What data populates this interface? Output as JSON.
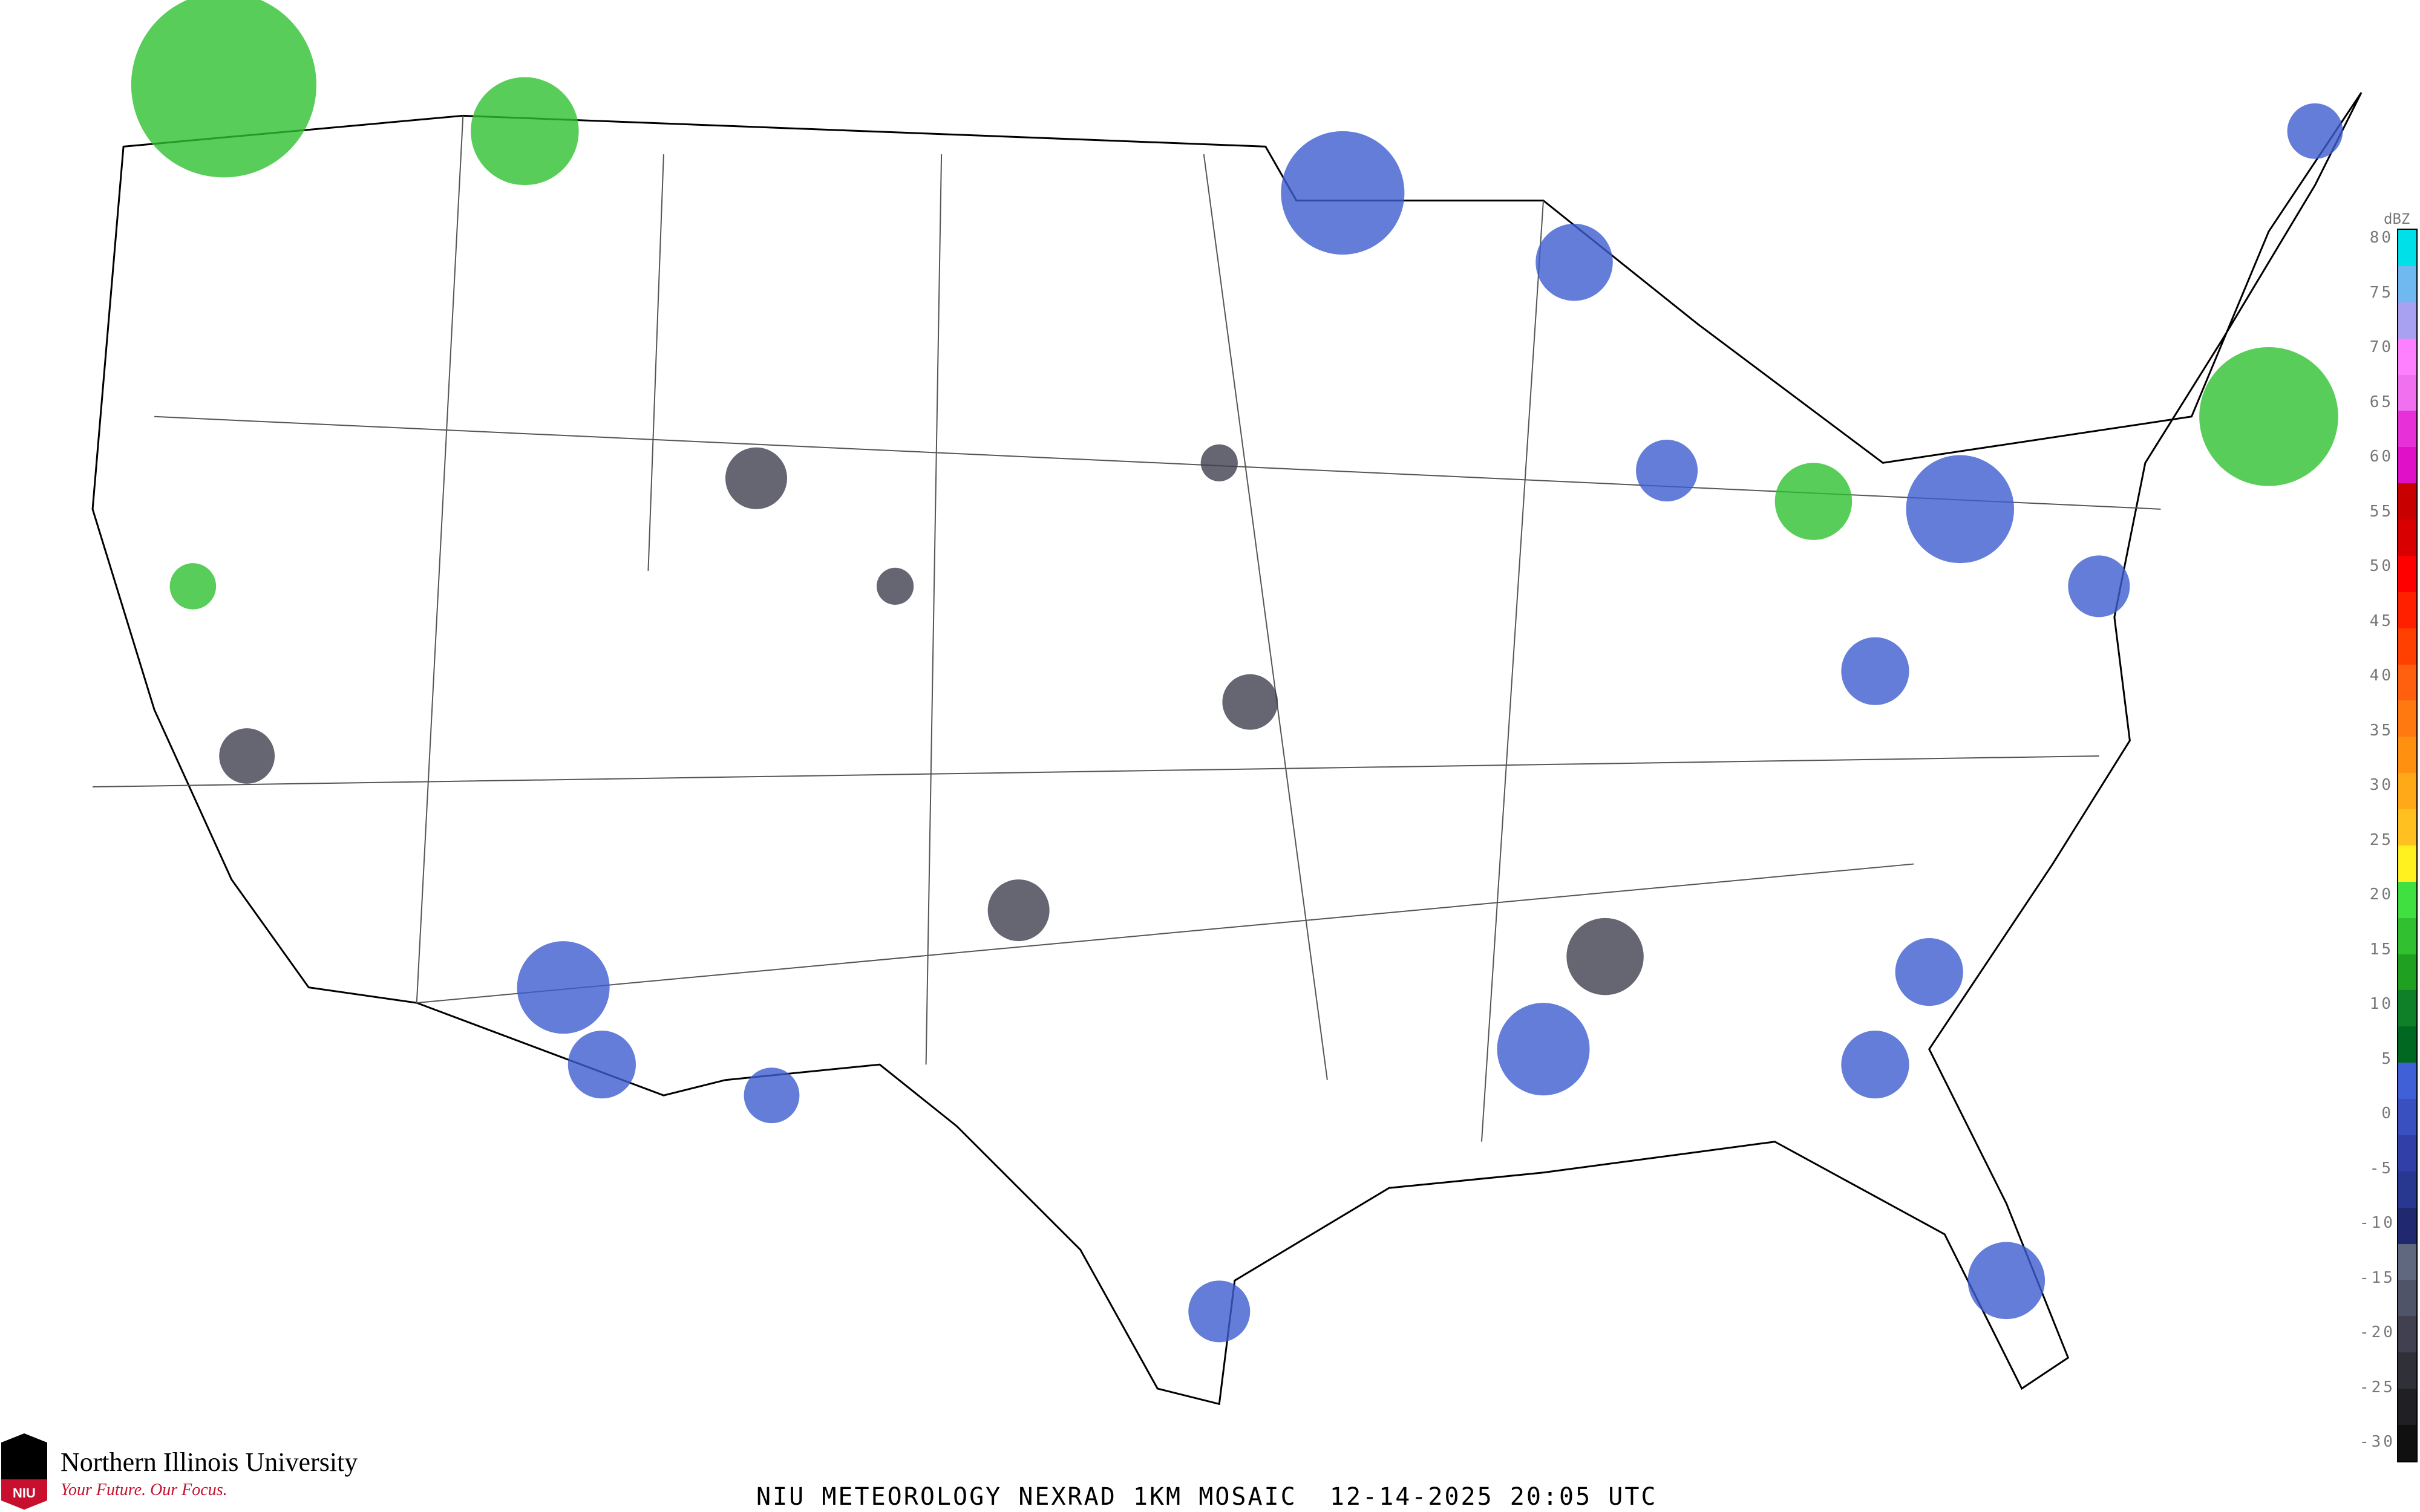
{
  "title": "NIU METEOROLOGY NEXRAD 1KM MOSAIC  12-14-2025 20:05 UTC",
  "logo": {
    "name": "Northern Illinois University",
    "tagline": "Your Future. Our Focus.",
    "mark": "NIU"
  },
  "legend": {
    "unit": "dBZ",
    "ticks": [
      "80",
      "75",
      "70",
      "65",
      "60",
      "55",
      "50",
      "45",
      "40",
      "35",
      "30",
      "25",
      "20",
      "15",
      "10",
      "5",
      "0",
      "-5",
      "-10",
      "-15",
      "-20",
      "-25",
      "-30"
    ],
    "colors": [
      "#00e0e8",
      "#70b8f0",
      "#a8a0f0",
      "#ff80ff",
      "#f070f0",
      "#e830d8",
      "#e010c8",
      "#c80000",
      "#d80000",
      "#ff0000",
      "#ff2000",
      "#ff4000",
      "#ff6010",
      "#ff7810",
      "#ff9010",
      "#ffa818",
      "#ffc020",
      "#fff020",
      "#40e040",
      "#30c030",
      "#20a020",
      "#108028",
      "#006820",
      "#4060d8",
      "#3850c0",
      "#3040a8",
      "#283890",
      "#202870",
      "#606880",
      "#505468",
      "#404050",
      "#303038",
      "#202024",
      "#101010"
    ]
  },
  "map": {
    "background": "#ffffff",
    "border_color": "#000000",
    "county_color": "#c8c8c8",
    "highway_color": "#c88060",
    "radar_light_color": "#3c5cd0",
    "radar_near_station_color": "#404050",
    "radar_moderate_color": "#30c030"
  }
}
